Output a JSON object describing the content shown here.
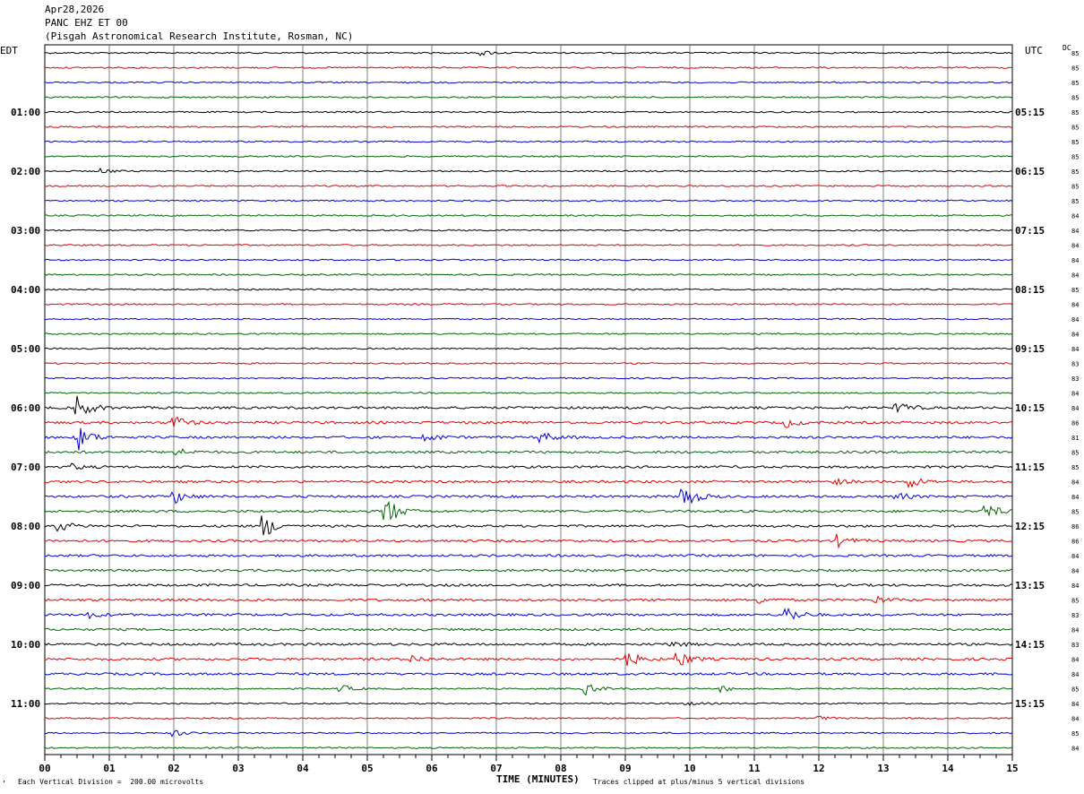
{
  "header": {
    "date": "Apr28,2026",
    "channel": "PANC EHZ ET 00",
    "station": "(Pisgah Astronomical Research Institute, Rosman, NC)"
  },
  "left_tz": "EDT",
  "right_tz": "UTC",
  "dc_label": "DC",
  "footer": {
    "scale": "Each Vertical Division =  200.00 microvolts",
    "clip": "Traces clipped at plus/minus 5 vertical divisions",
    "corner_mark": "’"
  },
  "colors": {
    "trace": [
      "#000000",
      "#e00000",
      "#0000d8",
      "#006400"
    ],
    "grid": "#7f7f7f"
  },
  "chart_data": {
    "type": "line",
    "title": "",
    "xlabel": "TIME (MINUTES)",
    "ylabel": "",
    "x_ticks": [
      "00",
      "01",
      "02",
      "03",
      "04",
      "05",
      "06",
      "07",
      "08",
      "09",
      "10",
      "11",
      "12",
      "13",
      "14",
      "15"
    ],
    "xlim": [
      0,
      15
    ],
    "left_hour_labels": [
      "01:00",
      "02:00",
      "03:00",
      "04:00",
      "05:00",
      "06:00",
      "07:00",
      "08:00",
      "09:00",
      "10:00",
      "11:00"
    ],
    "right_hour_labels": [
      "05:15",
      "06:15",
      "07:15",
      "08:15",
      "09:15",
      "10:15",
      "11:15",
      "12:15",
      "13:15",
      "14:15",
      "15:15"
    ],
    "dc_offsets": [
      "85",
      "85",
      "85",
      "85",
      "85",
      "85",
      "85",
      "85",
      "85",
      "85",
      "85",
      "84",
      "84",
      "84",
      "84",
      "84",
      "85",
      "84",
      "84",
      "84",
      "84",
      "83",
      "83",
      "84",
      "84",
      "86",
      "81",
      "85",
      "85",
      "84",
      "84",
      "85",
      "86",
      "86",
      "84",
      "84",
      "84",
      "85",
      "83",
      "84",
      "83",
      "84",
      "84",
      "85",
      "84",
      "84",
      "85",
      "84"
    ],
    "series_count": 48,
    "events": [
      {
        "trace": 0,
        "minute": 6.8,
        "amp": 0.3
      },
      {
        "trace": 8,
        "minute": 0.9,
        "amp": 0.3
      },
      {
        "trace": 24,
        "minute": 0.5,
        "amp": 1.8
      },
      {
        "trace": 24,
        "minute": 13.2,
        "amp": 1.0
      },
      {
        "trace": 25,
        "minute": 2.0,
        "amp": 1.0
      },
      {
        "trace": 25,
        "minute": 11.5,
        "amp": 0.6
      },
      {
        "trace": 26,
        "minute": 0.5,
        "amp": 2.0
      },
      {
        "trace": 26,
        "minute": 5.9,
        "amp": 0.6
      },
      {
        "trace": 26,
        "minute": 7.7,
        "amp": 0.8
      },
      {
        "trace": 27,
        "minute": 2.0,
        "amp": 0.7
      },
      {
        "trace": 28,
        "minute": 0.4,
        "amp": 0.4
      },
      {
        "trace": 29,
        "minute": 13.4,
        "amp": 0.9
      },
      {
        "trace": 29,
        "minute": 12.2,
        "amp": 0.5
      },
      {
        "trace": 30,
        "minute": 2.0,
        "amp": 1.0
      },
      {
        "trace": 30,
        "minute": 9.9,
        "amp": 1.8
      },
      {
        "trace": 30,
        "minute": 13.2,
        "amp": 0.5
      },
      {
        "trace": 31,
        "minute": 5.3,
        "amp": 2.0
      },
      {
        "trace": 31,
        "minute": 14.6,
        "amp": 1.0
      },
      {
        "trace": 32,
        "minute": 3.4,
        "amp": 1.6
      },
      {
        "trace": 32,
        "minute": 0.2,
        "amp": 0.8
      },
      {
        "trace": 33,
        "minute": 12.3,
        "amp": 0.8
      },
      {
        "trace": 37,
        "minute": 11.1,
        "amp": 0.4
      },
      {
        "trace": 37,
        "minute": 12.9,
        "amp": 0.5
      },
      {
        "trace": 38,
        "minute": 11.5,
        "amp": 1.2
      },
      {
        "trace": 38,
        "minute": 0.7,
        "amp": 0.4
      },
      {
        "trace": 40,
        "minute": 9.7,
        "amp": 0.5
      },
      {
        "trace": 41,
        "minute": 9.0,
        "amp": 1.3
      },
      {
        "trace": 41,
        "minute": 9.8,
        "amp": 1.3
      },
      {
        "trace": 41,
        "minute": 5.7,
        "amp": 0.5
      },
      {
        "trace": 43,
        "minute": 8.4,
        "amp": 0.8
      },
      {
        "trace": 43,
        "minute": 4.6,
        "amp": 0.5
      },
      {
        "trace": 43,
        "minute": 10.5,
        "amp": 0.4
      },
      {
        "trace": 44,
        "minute": 9.9,
        "amp": 0.3
      },
      {
        "trace": 45,
        "minute": 12.0,
        "amp": 0.3
      },
      {
        "trace": 46,
        "minute": 2.0,
        "amp": 0.4
      }
    ]
  }
}
